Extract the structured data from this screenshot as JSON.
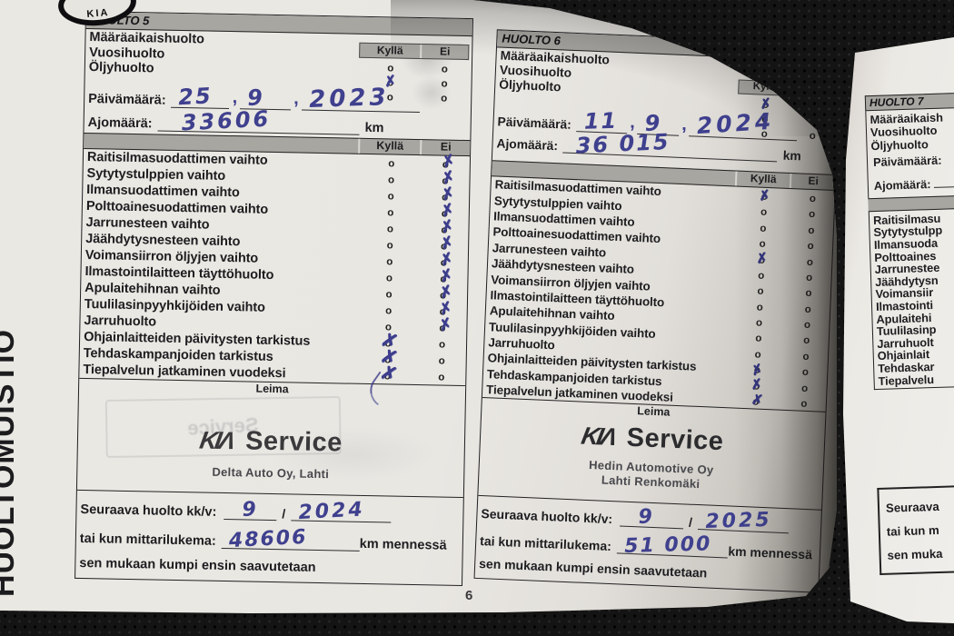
{
  "photo": {
    "page_number": "6",
    "side_tab": "HUOLTOMUISTIO",
    "badge_text": "KIA"
  },
  "labels": {
    "yes": "Kyllä",
    "no": "Ei",
    "stamp": "Leima"
  },
  "glyphs": {
    "circle": "o",
    "mark": "✗",
    "hand_sep": ",",
    "slash": "/",
    "kia_logo": "KIΛ"
  },
  "service5": {
    "title": "HUOLTO 5",
    "top_items": [
      {
        "label": "Määräaikaishuolto",
        "mark": ""
      },
      {
        "label": "Vuosihuolto",
        "mark": "yes"
      },
      {
        "label": "Öljyhuolto",
        "mark": ""
      }
    ],
    "date_label": "Päivämäärä:",
    "date_day": "25",
    "date_month": "9",
    "date_year": "2023",
    "odo_label": "Ajomäärä:",
    "odo": "33606",
    "km_label": "km",
    "items": [
      {
        "label": "Raitisilmasuodattimen vaihto",
        "mark": "no"
      },
      {
        "label": "Sytytystulppien vaihto",
        "mark": "no"
      },
      {
        "label": "Ilmansuodattimen vaihto",
        "mark": "no"
      },
      {
        "label": "Polttoainesuodattimen vaihto",
        "mark": "no"
      },
      {
        "label": "Jarrunesteen vaihto",
        "mark": "no"
      },
      {
        "label": "Jäähdytysnesteen vaihto",
        "mark": "no"
      },
      {
        "label": "Voimansiirron öljyjen vaihto",
        "mark": "no"
      },
      {
        "label": "Ilmastointilaitteen täyttöhuolto",
        "mark": "no"
      },
      {
        "label": "Apulaitehihnan vaihto",
        "mark": "no"
      },
      {
        "label": "Tuulilasinpyyhkijöiden vaihto",
        "mark": "no"
      },
      {
        "label": "Jarruhuolto",
        "mark": "no"
      },
      {
        "label": "Ohjainlaitteiden päivitysten tarkistus",
        "mark": "yes"
      },
      {
        "label": "Tehdaskampanjoiden tarkistus",
        "mark": "yes"
      },
      {
        "label": "Tiepalvelun jatkaminen vuodeksi",
        "mark": "yes"
      }
    ],
    "ghost_text": "Service",
    "stamp": {
      "brand_suffix": "Service",
      "dealer_line1": "Delta Auto Oy, Lahti"
    },
    "next": {
      "label": "Seuraava huolto kk/v:",
      "month": "9",
      "year": "2024",
      "odo_label": "tai kun mittarilukema:",
      "odo": "48606",
      "km_suffix": "km mennessä",
      "note": "sen mukaan kumpi ensin saavutetaan"
    }
  },
  "service6": {
    "title": "HUOLTO 6",
    "top_items": [
      {
        "label": "Määräaikaishuolto",
        "mark": "yes"
      },
      {
        "label": "Vuosihuolto",
        "mark": ""
      },
      {
        "label": "Öljyhuolto",
        "mark": ""
      }
    ],
    "date_label": "Päivämäärä:",
    "date_day": "11",
    "date_month": "9",
    "date_year": "2024",
    "odo_label": "Ajomäärä:",
    "odo": "36 015",
    "km_label": "km",
    "items": [
      {
        "label": "Raitisilmasuodattimen vaihto",
        "mark": "yes"
      },
      {
        "label": "Sytytystulppien vaihto",
        "mark": ""
      },
      {
        "label": "Ilmansuodattimen vaihto",
        "mark": ""
      },
      {
        "label": "Polttoainesuodattimen vaihto",
        "mark": ""
      },
      {
        "label": "Jarrunesteen vaihto",
        "mark": "yes"
      },
      {
        "label": "Jäähdytysnesteen vaihto",
        "mark": ""
      },
      {
        "label": "Voimansiirron öljyjen vaihto",
        "mark": ""
      },
      {
        "label": "Ilmastointilaitteen täyttöhuolto",
        "mark": ""
      },
      {
        "label": "Apulaitehihnan vaihto",
        "mark": ""
      },
      {
        "label": "Tuulilasinpyyhkijöiden vaihto",
        "mark": ""
      },
      {
        "label": "Jarruhuolto",
        "mark": ""
      },
      {
        "label": "Ohjainlaitteiden päivitysten tarkistus",
        "mark": "yes"
      },
      {
        "label": "Tehdaskampanjoiden tarkistus",
        "mark": "yes"
      },
      {
        "label": "Tiepalvelun jatkaminen vuodeksi",
        "mark": "yes"
      }
    ],
    "stamp": {
      "brand_suffix": "Service",
      "dealer_line1": "Hedin Automotive Oy",
      "dealer_line2": "Lahti Renkomäki"
    },
    "next": {
      "label": "Seuraava huolto kk/v:",
      "month": "9",
      "year": "2025",
      "odo_label": "tai kun mittarilukema:",
      "odo": "51 000",
      "km_suffix": "km mennessä",
      "note": "sen mukaan kumpi ensin saavutetaan"
    }
  },
  "service7": {
    "title": "HUOLTO 7",
    "lines": [
      "Määräaikaish",
      "Vuosihuolto",
      "Öljyhuolto",
      "Päivämäärä:",
      "Ajomäärä:"
    ],
    "items": [
      "Raitisilmasu",
      "Sytytystulpp",
      "Ilmansuoda",
      "Polttoaines",
      "Jarrunestee",
      "Jäähdytysn",
      "Voimansiir",
      "Ilmastointi",
      "Apulaitehi",
      "Tuulilasinp",
      "Jarruhuolt",
      "Ohjainlait",
      "Tehdaskar",
      "Tiepalvelu"
    ],
    "bottom": [
      "Seuraava",
      "tai kun m",
      "sen muka"
    ]
  }
}
